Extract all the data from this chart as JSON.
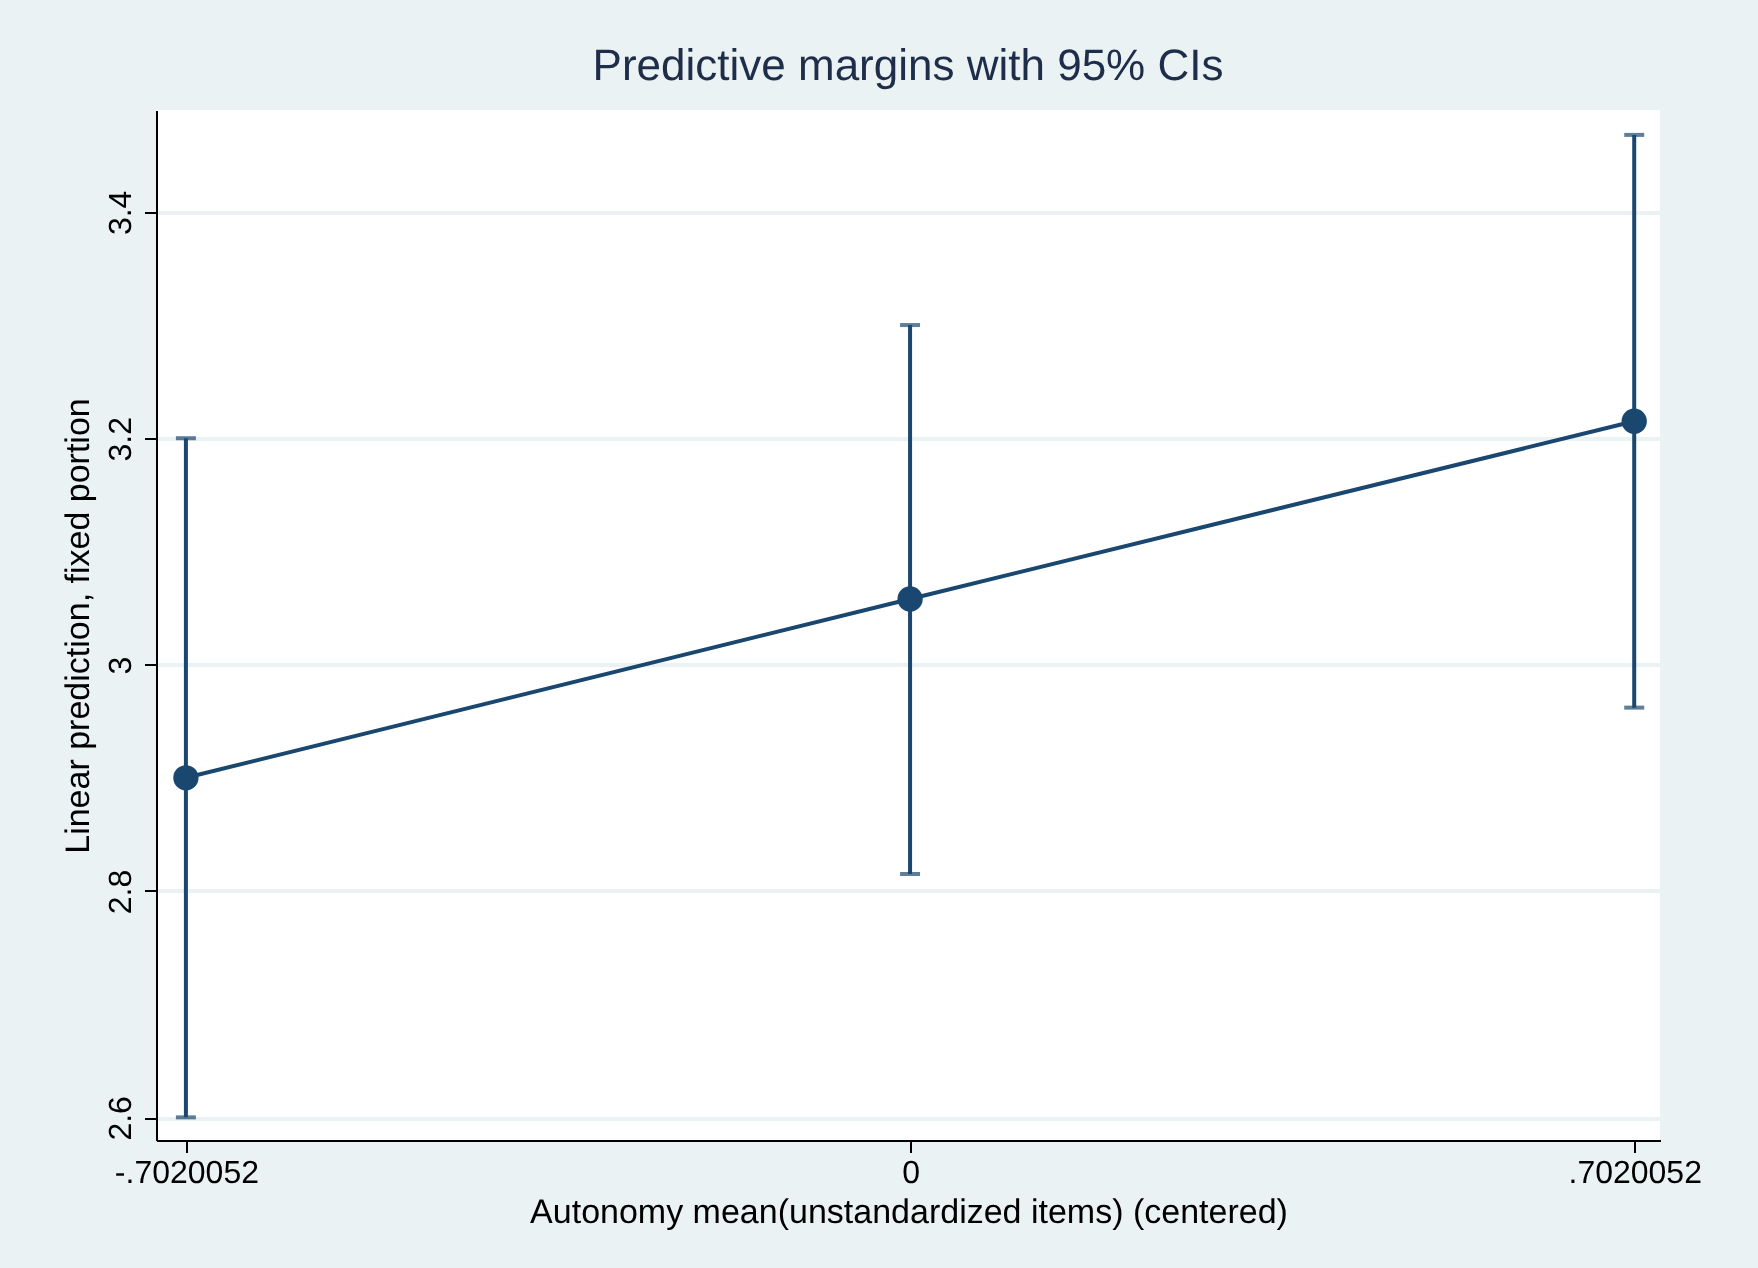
{
  "chart_data": {
    "type": "line",
    "title": "Predictive margins with 95% CIs",
    "xlabel": "Autonomy mean(unstandardized items) (centered)",
    "ylabel": "Linear prediction, fixed portion",
    "x": [
      -0.7020052,
      0,
      0.7020052
    ],
    "series": [
      {
        "color": "#1a476f",
        "values": [
          2.9,
          3.058,
          3.215
        ],
        "errors": [
          [
            2.6,
            3.2
          ],
          [
            2.815,
            3.3
          ],
          [
            2.962,
            3.468
          ]
        ]
      }
    ],
    "xlim": [
      -0.731,
      0.727
    ],
    "ylim": [
      2.58,
      3.49
    ],
    "xticks": [
      {
        "value": -0.7020052,
        "label": "-.7020052"
      },
      0,
      {
        "value": 0.7020052,
        "label": ".7020052"
      }
    ],
    "yticks": [
      2.6,
      2.8,
      3,
      3.2,
      3.4
    ],
    "grid": "y",
    "marker": "circle",
    "line_style": "solid"
  }
}
